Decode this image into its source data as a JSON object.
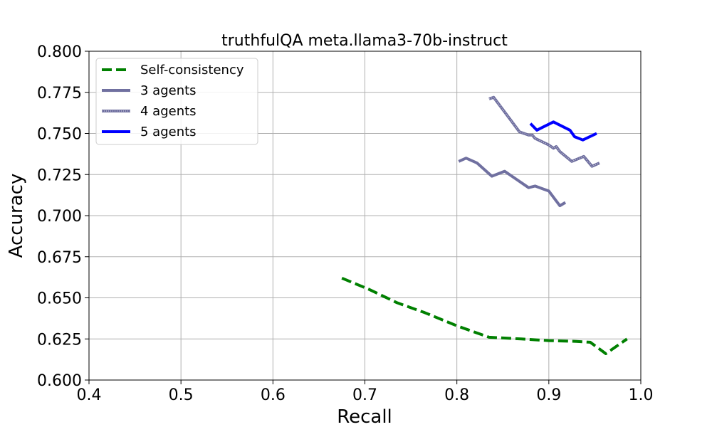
{
  "chart_data": {
    "type": "line",
    "title": "truthfulQA meta.llama3-70b-instruct",
    "xlabel": "Recall",
    "ylabel": "Accuracy",
    "xlim": [
      0.4,
      1.0
    ],
    "ylim": [
      0.6,
      0.8
    ],
    "xticks": [
      "0.4",
      "0.5",
      "0.6",
      "0.7",
      "0.8",
      "0.9",
      "1.0"
    ],
    "yticks": [
      "0.600",
      "0.625",
      "0.650",
      "0.675",
      "0.700",
      "0.725",
      "0.750",
      "0.775",
      "0.800"
    ],
    "grid": true,
    "legend_position": "top-left",
    "series": [
      {
        "name": "Self-consistency",
        "color": "#008000",
        "style": "dashed",
        "points": [
          [
            0.675,
            0.662
          ],
          [
            0.705,
            0.655
          ],
          [
            0.735,
            0.647
          ],
          [
            0.765,
            0.641
          ],
          [
            0.8,
            0.633
          ],
          [
            0.835,
            0.626
          ],
          [
            0.87,
            0.625
          ],
          [
            0.9,
            0.624
          ],
          [
            0.93,
            0.6235
          ],
          [
            0.945,
            0.623
          ],
          [
            0.962,
            0.616
          ],
          [
            0.985,
            0.625
          ]
        ]
      },
      {
        "name": "3 agents",
        "color": "#7070a0",
        "style": "solid",
        "points": [
          [
            0.802,
            0.733
          ],
          [
            0.81,
            0.735
          ],
          [
            0.822,
            0.732
          ],
          [
            0.838,
            0.724
          ],
          [
            0.852,
            0.727
          ],
          [
            0.878,
            0.717
          ],
          [
            0.885,
            0.718
          ],
          [
            0.9,
            0.715
          ],
          [
            0.912,
            0.706
          ],
          [
            0.918,
            0.708
          ]
        ]
      },
      {
        "name": "4 agents",
        "color": "#7070a0",
        "style": "dotted-solid",
        "points": [
          [
            0.835,
            0.771
          ],
          [
            0.84,
            0.772
          ],
          [
            0.86,
            0.757
          ],
          [
            0.868,
            0.751
          ],
          [
            0.878,
            0.749
          ],
          [
            0.882,
            0.749
          ],
          [
            0.885,
            0.747
          ],
          [
            0.9,
            0.743
          ],
          [
            0.905,
            0.741
          ],
          [
            0.908,
            0.742
          ],
          [
            0.912,
            0.739
          ],
          [
            0.925,
            0.733
          ],
          [
            0.938,
            0.736
          ],
          [
            0.947,
            0.73
          ],
          [
            0.955,
            0.732
          ]
        ]
      },
      {
        "name": "5 agents",
        "color": "#0000ff",
        "style": "solid",
        "points": [
          [
            0.88,
            0.756
          ],
          [
            0.887,
            0.752
          ],
          [
            0.905,
            0.757
          ],
          [
            0.923,
            0.752
          ],
          [
            0.928,
            0.748
          ],
          [
            0.937,
            0.746
          ],
          [
            0.952,
            0.75
          ]
        ]
      }
    ]
  }
}
